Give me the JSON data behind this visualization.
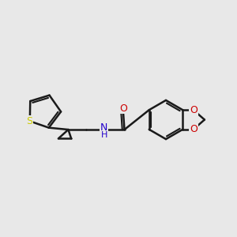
{
  "background_color": "#e8e8e8",
  "bond_color": "#1a1a1a",
  "S_color": "#cccc00",
  "N_color": "#2200cc",
  "O_color": "#cc0000",
  "lw": 1.8,
  "figsize": [
    3.0,
    3.0
  ],
  "dpi": 100,
  "xlim": [
    0,
    10
  ],
  "ylim": [
    2,
    8
  ]
}
